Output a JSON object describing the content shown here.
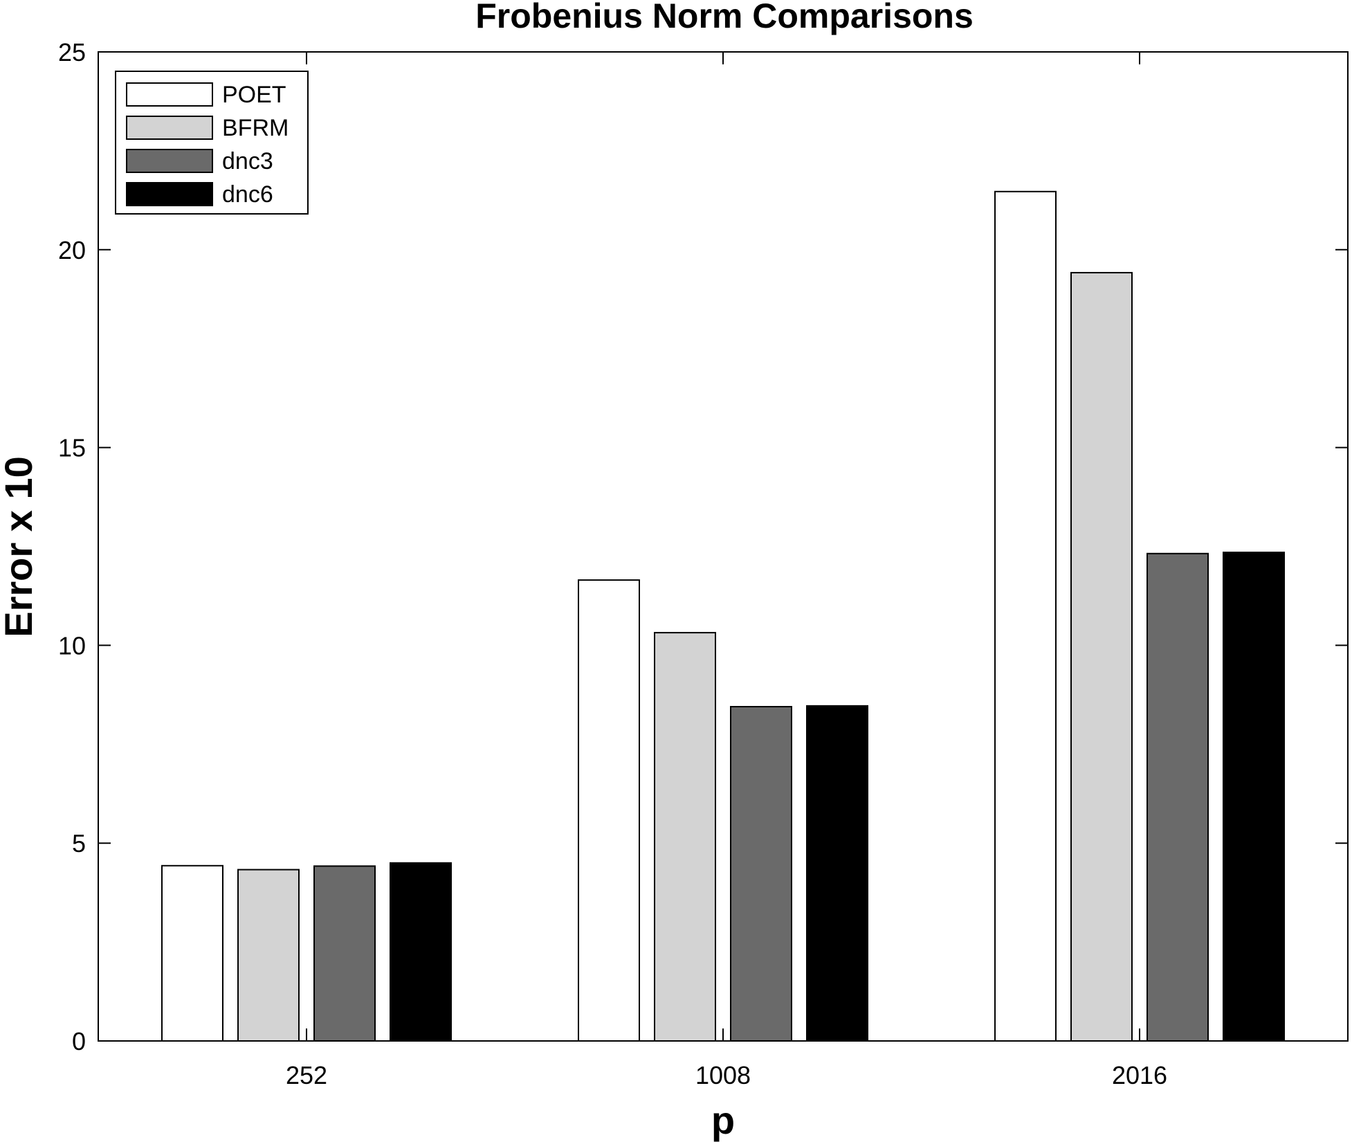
{
  "chart_data": {
    "type": "bar",
    "title": "Frobenius Norm Comparisons",
    "xlabel": "p",
    "ylabel": "Error x 10",
    "categories": [
      "252",
      "1008",
      "2016"
    ],
    "ylim": [
      0,
      25
    ],
    "yticks": [
      0,
      5,
      10,
      15,
      20,
      25
    ],
    "grid": false,
    "legend_position": "top-left",
    "series": [
      {
        "name": "POET",
        "color": "#ffffff",
        "values": [
          4.43,
          11.65,
          21.47
        ]
      },
      {
        "name": "BFRM",
        "color": "#d3d3d3",
        "values": [
          4.33,
          10.32,
          19.42
        ]
      },
      {
        "name": "dnc3",
        "color": "#6a6a6a",
        "values": [
          4.42,
          8.45,
          12.32
        ]
      },
      {
        "name": "dnc6",
        "color": "#000000",
        "values": [
          4.5,
          8.47,
          12.35
        ]
      }
    ]
  }
}
